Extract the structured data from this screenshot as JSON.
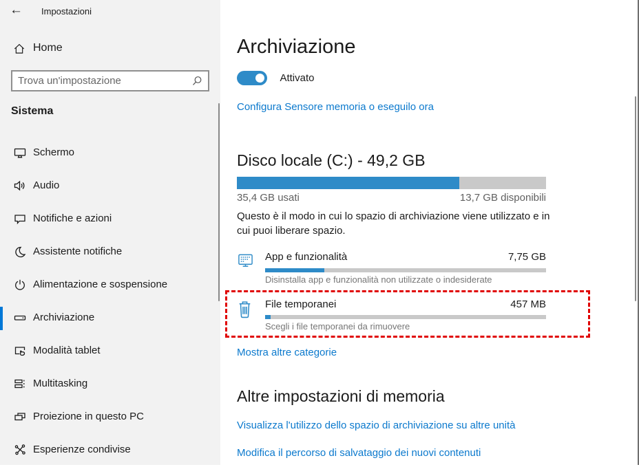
{
  "window": {
    "title": "Impostazioni",
    "back_glyph": "←",
    "close_glyph": "✕"
  },
  "sidebar": {
    "home_label": "Home",
    "search_placeholder": "Trova un'impostazione",
    "section_label": "Sistema",
    "items": [
      {
        "label": "Schermo",
        "icon": "monitor-icon"
      },
      {
        "label": "Audio",
        "icon": "speaker-icon"
      },
      {
        "label": "Notifiche e azioni",
        "icon": "message-bubble-icon"
      },
      {
        "label": "Assistente notifiche",
        "icon": "moon-icon"
      },
      {
        "label": "Alimentazione e sospensione",
        "icon": "power-icon"
      },
      {
        "label": "Archiviazione",
        "icon": "drive-icon",
        "selected": true
      },
      {
        "label": "Modalità tablet",
        "icon": "tablet-icon"
      },
      {
        "label": "Multitasking",
        "icon": "multitask-icon"
      },
      {
        "label": "Proiezione in questo PC",
        "icon": "project-screens-icon"
      },
      {
        "label": "Esperienze condivise",
        "icon": "share-icon"
      }
    ]
  },
  "main": {
    "page_title": "Archiviazione",
    "storage_sense": {
      "state_label": "Attivato",
      "on": true
    },
    "configure_link": "Configura Sensore memoria o eseguilo ora",
    "disk": {
      "heading": "Disco locale (C:) - 49,2 GB",
      "used_label": "35,4 GB usati",
      "free_label": "13,7 GB disponibili",
      "used_percent": 72,
      "description": "Questo è il modo in cui lo spazio di archiviazione viene utilizzato e in cui puoi liberare spazio."
    },
    "categories": [
      {
        "title": "App e funzionalità",
        "value": "7,75 GB",
        "percent": 21,
        "subtitle": "Disinstalla app e funzionalità non utilizzate o indesiderate",
        "icon": "apps-monitor-icon"
      },
      {
        "title": "File temporanei",
        "value": "457 MB",
        "percent": 2,
        "subtitle": "Scegli i file temporanei da rimuovere",
        "icon": "trash-icon",
        "highlighted": true
      }
    ],
    "show_more_link": "Mostra altre categorie",
    "more_settings": {
      "heading": "Altre impostazioni di memoria",
      "links": [
        "Visualizza l'utilizzo dello spazio di archiviazione su altre unità",
        "Modifica il percorso di salvataggio dei nuovi contenuti"
      ]
    }
  },
  "colors": {
    "accent_blue": "#0078d7",
    "bar_blue": "#2e8bc8",
    "bar_track_gray": "#c9c9c9",
    "highlight_red": "#e00000",
    "sidebar_bg": "#f2f2f2"
  }
}
